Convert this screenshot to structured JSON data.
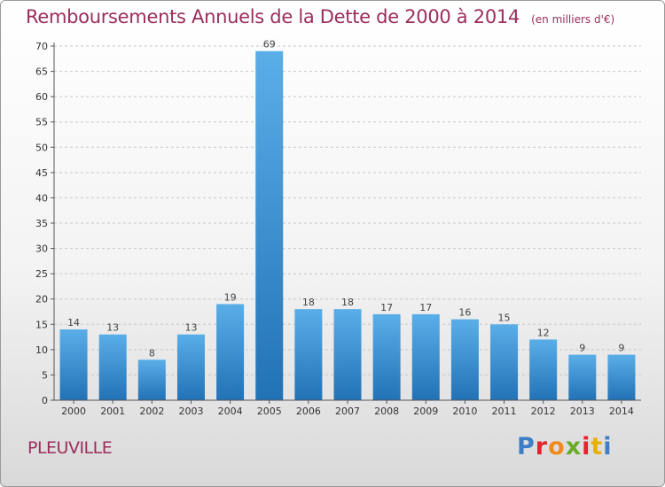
{
  "header": {
    "title": "Remboursements Annuels de la Dette de 2000 à 2014",
    "unit": "(en milliers d'€)"
  },
  "footer": {
    "town": "PLEUVILLE",
    "logo_letters": [
      "P",
      "r",
      "o",
      "x",
      "i",
      "t",
      "i"
    ],
    "logo_colors": [
      "#3d7ec6",
      "#e4232e",
      "#f08a1c",
      "#6aaa2a",
      "#e4232e",
      "#e8b000",
      "#3d7ec6"
    ]
  },
  "colors": {
    "bar_light": "#5aaee8",
    "bar_dark": "#2272b6",
    "title": "#9b2d5c"
  },
  "chart_data": {
    "type": "bar",
    "title": "Remboursements Annuels de la Dette de 2000 à 2014",
    "categories": [
      "2000",
      "2001",
      "2002",
      "2003",
      "2004",
      "2005",
      "2006",
      "2007",
      "2008",
      "2009",
      "2010",
      "2011",
      "2012",
      "2013",
      "2014"
    ],
    "values": [
      14,
      13,
      8,
      13,
      19,
      69,
      18,
      18,
      17,
      17,
      16,
      15,
      12,
      9,
      9
    ],
    "ylim": [
      0,
      70
    ],
    "yticks": [
      0,
      5,
      10,
      15,
      20,
      25,
      30,
      35,
      40,
      45,
      50,
      55,
      60,
      65,
      70
    ],
    "grid": true,
    "xlabel": "",
    "ylabel": ""
  }
}
